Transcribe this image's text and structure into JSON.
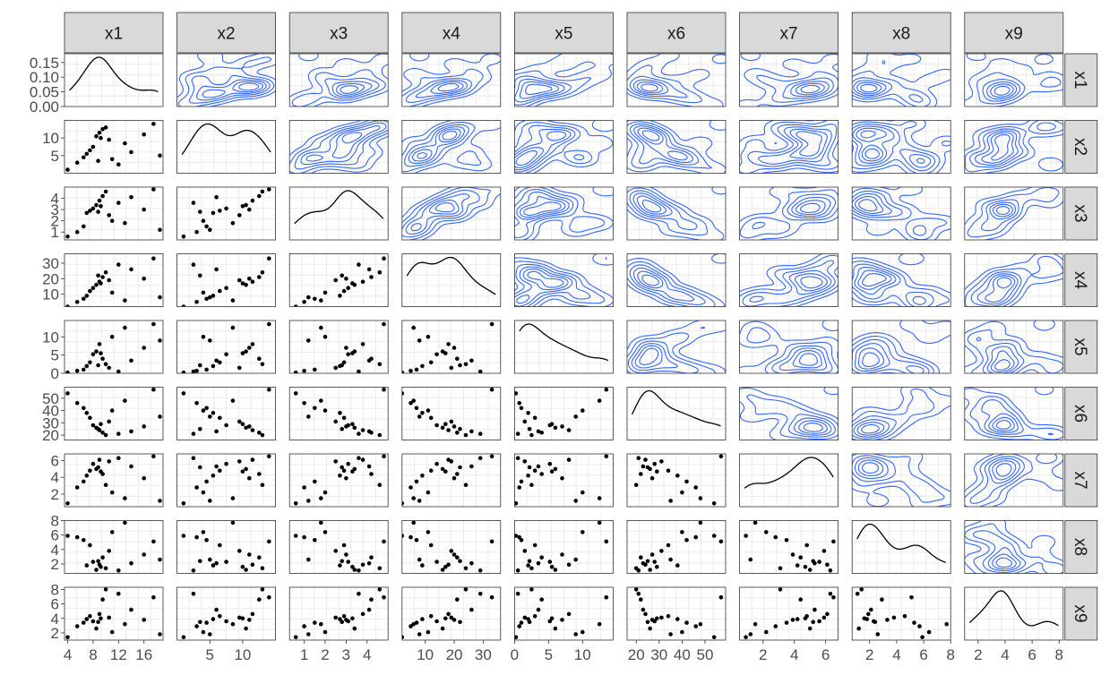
{
  "chart_data": {
    "type": "scatter",
    "title": "",
    "variables": [
      "x1",
      "x2",
      "x3",
      "x4",
      "x5",
      "x6",
      "x7",
      "x8",
      "x9"
    ],
    "layout": "pairs-matrix: density on diagonal, scatter below diagonal, 2D density contours above diagonal",
    "grid": true,
    "strip_color": "#d9d9d9",
    "contour_color": "#3366ff",
    "point_color": "#000000",
    "axis_ranges": {
      "x1": [
        3.5,
        19.0
      ],
      "x2": [
        0.0,
        15.0
      ],
      "x3": [
        0.3,
        5.0
      ],
      "x4": [
        2.0,
        36.0
      ],
      "x5": [
        0.0,
        14.5
      ],
      "x6": [
        16.0,
        59.0
      ],
      "x7": [
        0.5,
        6.8
      ],
      "x8": [
        0.7,
        8.0
      ],
      "x9": [
        1.0,
        8.3
      ]
    },
    "tick_labels": {
      "x1": [
        "4",
        "8",
        "12",
        "16"
      ],
      "x2": [
        "5",
        "10"
      ],
      "x3": [
        "1",
        "2",
        "3",
        "4"
      ],
      "x4": [
        "10",
        "20",
        "30"
      ],
      "x5": [
        "0",
        "5",
        "10"
      ],
      "x6": [
        "20",
        "30",
        "40",
        "50"
      ],
      "x7": [
        "2",
        "4",
        "6"
      ],
      "x8": [
        "2",
        "4",
        "6",
        "8"
      ],
      "x9": [
        "2",
        "4",
        "6",
        "8"
      ]
    },
    "diag_y_axis": {
      "ticks": [
        "0.00",
        "0.05",
        "0.10",
        "0.15"
      ],
      "range": [
        0,
        0.18
      ]
    },
    "diag_y_values": [
      0.0,
      0.05,
      0.1,
      0.15
    ],
    "tick_values": {
      "x1": [
        4,
        8,
        12,
        16
      ],
      "x2": [
        5,
        10
      ],
      "x3": [
        1,
        2,
        3,
        4
      ],
      "x4": [
        10,
        20,
        30
      ],
      "x5": [
        0,
        5,
        10
      ],
      "x6": [
        20,
        30,
        40,
        50
      ],
      "x7": [
        2,
        4,
        6
      ],
      "x8": [
        2,
        4,
        6,
        8
      ],
      "x9": [
        2,
        4,
        6,
        8
      ]
    },
    "observations": [
      {
        "x1": 4.0,
        "x2": 1.0,
        "x3": 0.6,
        "x4": 2,
        "x5": 0.2,
        "x6": 54,
        "x7": 0.9,
        "x8": 5.9,
        "x9": 1.4
      },
      {
        "x1": 5.5,
        "x2": 3.0,
        "x3": 1.0,
        "x4": 5,
        "x5": 0.7,
        "x6": 46,
        "x7": 2.8,
        "x8": 5.7,
        "x9": 2.9
      },
      {
        "x1": 6.5,
        "x2": 4.5,
        "x3": 1.5,
        "x4": 7,
        "x5": 1.0,
        "x6": 42,
        "x7": 3.5,
        "x8": 5.3,
        "x9": 3.4
      },
      {
        "x1": 7.0,
        "x2": 5.5,
        "x3": 2.7,
        "x4": 9,
        "x5": 2.0,
        "x6": 38,
        "x7": 4.2,
        "x8": 1.8,
        "x9": 3.9
      },
      {
        "x1": 7.5,
        "x2": 6.5,
        "x3": 2.9,
        "x4": 12,
        "x5": 3.0,
        "x6": 34,
        "x7": 4.8,
        "x8": 4.6,
        "x9": 4.3
      },
      {
        "x1": 8.0,
        "x2": 7.5,
        "x3": 3.1,
        "x4": 14,
        "x5": 5.2,
        "x6": 28,
        "x7": 5.6,
        "x8": 2.3,
        "x9": 3.6
      },
      {
        "x1": 8.5,
        "x2": 10.5,
        "x3": 3.4,
        "x4": 16,
        "x5": 6.0,
        "x6": 26,
        "x7": 5.0,
        "x8": 1.2,
        "x9": 2.6
      },
      {
        "x1": 9.0,
        "x2": 11.5,
        "x3": 3.8,
        "x4": 18,
        "x5": 8.0,
        "x6": 24,
        "x7": 6.1,
        "x8": 1.9,
        "x9": 4.6
      },
      {
        "x1": 9.5,
        "x2": 12.5,
        "x3": 4.2,
        "x4": 21,
        "x5": 4.0,
        "x6": 22,
        "x7": 4.4,
        "x8": 2.9,
        "x9": 6.6
      },
      {
        "x1": 10.0,
        "x2": 13.0,
        "x3": 4.6,
        "x4": 24,
        "x5": 2.5,
        "x6": 20,
        "x7": 3.1,
        "x8": 1.4,
        "x9": 8.0
      },
      {
        "x1": 10.5,
        "x2": 9.5,
        "x3": 2.5,
        "x4": 19,
        "x5": 1.5,
        "x6": 31,
        "x7": 5.9,
        "x8": 3.8,
        "x9": 4.1
      },
      {
        "x1": 11.0,
        "x2": 4.0,
        "x3": 2.0,
        "x4": 11,
        "x5": 10.0,
        "x6": 40,
        "x7": 2.2,
        "x8": 6.4,
        "x9": 2.1
      },
      {
        "x1": 12.0,
        "x2": 2.5,
        "x3": 3.6,
        "x4": 29,
        "x5": 0.5,
        "x6": 21,
        "x7": 6.3,
        "x8": 1.1,
        "x9": 7.4
      },
      {
        "x1": 13.0,
        "x2": 8.5,
        "x3": 1.8,
        "x4": 6,
        "x5": 12.5,
        "x6": 48,
        "x7": 1.5,
        "x8": 7.7,
        "x9": 3.2
      },
      {
        "x1": 14.0,
        "x2": 6.0,
        "x3": 4.1,
        "x4": 26,
        "x5": 3.5,
        "x6": 23,
        "x7": 5.3,
        "x8": 2.1,
        "x9": 5.2
      },
      {
        "x1": 16.0,
        "x2": 11.0,
        "x3": 3.0,
        "x4": 20,
        "x5": 7.0,
        "x6": 27,
        "x7": 3.9,
        "x8": 3.3,
        "x9": 3.8
      },
      {
        "x1": 17.5,
        "x2": 14.0,
        "x3": 4.8,
        "x4": 33,
        "x5": 13.5,
        "x6": 57,
        "x7": 6.5,
        "x8": 5.1,
        "x9": 6.9
      },
      {
        "x1": 18.5,
        "x2": 5.0,
        "x3": 1.2,
        "x4": 8,
        "x5": 9.0,
        "x6": 35,
        "x7": 1.2,
        "x8": 2.6,
        "x9": 1.8
      },
      {
        "x1": 9.2,
        "x2": 10.0,
        "x3": 3.3,
        "x4": 17,
        "x5": 5.5,
        "x6": 29,
        "x7": 4.7,
        "x8": 1.6,
        "x9": 4.0
      },
      {
        "x1": 8.8,
        "x2": 3.5,
        "x3": 2.8,
        "x4": 22,
        "x5": 2.2,
        "x6": 25,
        "x7": 5.2,
        "x8": 2.4,
        "x9": 3.5
      }
    ]
  }
}
